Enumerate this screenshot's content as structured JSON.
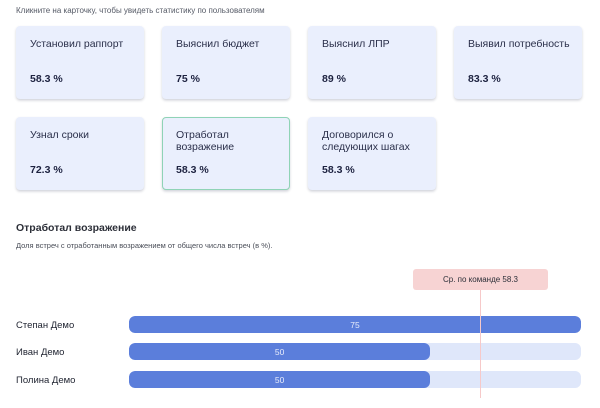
{
  "hint": "Кликните на карточку, чтобы увидеть статистику по пользователям",
  "cards": [
    {
      "label": "Установил раппорт",
      "value": "58.3 %",
      "selected": false
    },
    {
      "label": "Выяснил бюджет",
      "value": "75 %",
      "selected": false
    },
    {
      "label": "Выяснил ЛПР",
      "value": "89 %",
      "selected": false
    },
    {
      "label": "Выявил потребность",
      "value": "83.3 %",
      "selected": false
    },
    {
      "label": "Узнал сроки",
      "value": "72.3 %",
      "selected": false
    },
    {
      "label": "Отработал возражение",
      "value": "58.3 %",
      "selected": true
    },
    {
      "label": "Договорился о следующих шагах",
      "value": "58.3 %",
      "selected": false
    }
  ],
  "detail": {
    "title": "Отработал возражение",
    "subtitle": "Доля встреч с отработанным возражением от общего числа встреч (в %).",
    "average_label": "Ср. по команде 58.3",
    "average_value": 58.3,
    "scale_max": 75,
    "rows": [
      {
        "name": "Степан Демо",
        "value": 75,
        "value_label": "75"
      },
      {
        "name": "Иван Демо",
        "value": 50,
        "value_label": "50"
      },
      {
        "name": "Полина Демо",
        "value": 50,
        "value_label": "50"
      }
    ]
  },
  "colors": {
    "card_bg": "#eaeffd",
    "selected_border": "#8fd3b6",
    "bar_fill": "#5b7edb",
    "bar_track": "#dfe7fa",
    "average_badge": "#f7d3d3",
    "average_line": "#f6c9c9"
  },
  "chart_data": {
    "type": "bar",
    "orientation": "horizontal",
    "title": "Отработал возражение",
    "subtitle": "Доля встреч с отработанным возражением от общего числа встреч (в %).",
    "categories": [
      "Степан Демо",
      "Иван Демо",
      "Полина Демо"
    ],
    "values": [
      75,
      50,
      50
    ],
    "reference_line": {
      "label": "Ср. по команде 58.3",
      "value": 58.3
    },
    "xlim": [
      0,
      75
    ]
  }
}
